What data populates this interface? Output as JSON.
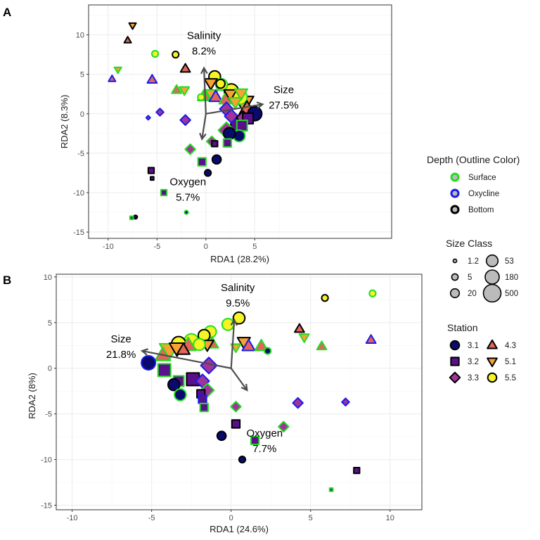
{
  "figure": {
    "panels": [
      {
        "tag": "A",
        "xlabel": "RDA1 (28.2%)",
        "ylabel": "RDA2 (8.3%)",
        "xlim": [
          -12,
          19
        ],
        "ylim": [
          -15.8,
          13.8
        ],
        "xticks": [
          -10,
          -5,
          0,
          5
        ],
        "yticks": [
          -15,
          -10,
          -5,
          0,
          5,
          10
        ],
        "xtick_labels": [
          "-10",
          "-5",
          "0",
          "5"
        ],
        "ytick_labels": [
          "-15",
          "-10",
          "-5",
          "0",
          "5",
          "10"
        ]
      },
      {
        "tag": "B",
        "xlabel": "RDA1 (24.6%)",
        "ylabel": "RDA2 (8%)",
        "xlim": [
          -11,
          12
        ],
        "ylim": [
          -15.5,
          10.3
        ],
        "xticks": [
          -10,
          -5,
          0,
          5,
          10
        ],
        "yticks": [
          -15,
          -10,
          -5,
          0,
          5,
          10
        ],
        "xtick_labels": [
          "-10",
          "-5",
          "0",
          "5",
          "10"
        ],
        "ytick_labels": [
          "-15",
          "-10",
          "-5",
          "0",
          "5",
          "10"
        ]
      }
    ]
  },
  "legend": {
    "depth": {
      "title": "Depth (Outline Color)",
      "items": [
        {
          "label": "Surface",
          "color": "#22dd22"
        },
        {
          "label": "Oxycline",
          "color": "#1a1aee"
        },
        {
          "label": "Bottom",
          "color": "#000000"
        }
      ]
    },
    "size": {
      "title": "Size Class",
      "items": [
        {
          "label": "1.2",
          "size": 1.2
        },
        {
          "label": "5",
          "size": 5
        },
        {
          "label": "20",
          "size": 20
        },
        {
          "label": "53",
          "size": 53
        },
        {
          "label": "180",
          "size": 180
        },
        {
          "label": "500",
          "size": 500
        }
      ]
    },
    "station": {
      "title": "Station",
      "items": [
        {
          "label": "3.1",
          "shape": "circle",
          "fill": "#0a0a6e"
        },
        {
          "label": "3.2",
          "shape": "square",
          "fill": "#5a108a"
        },
        {
          "label": "3.3",
          "shape": "diamond",
          "fill": "#a0349a"
        },
        {
          "label": "4.3",
          "shape": "triangle",
          "fill": "#e0655a"
        },
        {
          "label": "5.1",
          "shape": "triangle-down",
          "fill": "#f7a234"
        },
        {
          "label": "5.5",
          "shape": "circle",
          "fill": "#f5f525"
        }
      ]
    }
  },
  "chart_data": [
    {
      "type": "scatter",
      "panel": "A",
      "xlabel": "RDA1 (28.2%)",
      "ylabel": "RDA2 (8.3%)",
      "xlim": [
        -12,
        19
      ],
      "ylim": [
        -15.8,
        13.8
      ],
      "grid": true,
      "arrows": [
        {
          "name": "Salinity",
          "pct": "8.2%",
          "x": -0.2,
          "y": 5.8
        },
        {
          "name": "Size",
          "pct": "27.5%",
          "x": 5.8,
          "y": 1.2
        },
        {
          "name": "Oxygen",
          "pct": "5.7%",
          "x": -0.4,
          "y": -3.2
        }
      ],
      "points": [
        {
          "x": -7.5,
          "y": 11.2,
          "station": "5.1",
          "depth": "Bottom",
          "size": 5
        },
        {
          "x": -8.0,
          "y": 9.3,
          "station": "4.3",
          "depth": "Bottom",
          "size": 5
        },
        {
          "x": -5.2,
          "y": 7.6,
          "station": "5.5",
          "depth": "Surface",
          "size": 5
        },
        {
          "x": -3.1,
          "y": 7.5,
          "station": "5.5",
          "depth": "Bottom",
          "size": 5
        },
        {
          "x": -9.0,
          "y": 5.6,
          "station": "5.1",
          "depth": "Surface",
          "size": 5
        },
        {
          "x": -9.6,
          "y": 4.4,
          "station": "4.3",
          "depth": "Oxycline",
          "size": 5
        },
        {
          "x": -5.5,
          "y": 4.3,
          "station": "4.3",
          "depth": "Oxycline",
          "size": 20
        },
        {
          "x": -2.1,
          "y": 5.7,
          "station": "4.3",
          "depth": "Bottom",
          "size": 20
        },
        {
          "x": -3.0,
          "y": 3.0,
          "station": "4.3",
          "depth": "Surface",
          "size": 20
        },
        {
          "x": -2.2,
          "y": 3.0,
          "station": "5.1",
          "depth": "Surface",
          "size": 20
        },
        {
          "x": -4.7,
          "y": 0.2,
          "station": "3.3",
          "depth": "Oxycline",
          "size": 5
        },
        {
          "x": -5.9,
          "y": -0.5,
          "station": "3.3",
          "depth": "Oxycline",
          "size": 1.2
        },
        {
          "x": -2.1,
          "y": -0.8,
          "station": "3.3",
          "depth": "Oxycline",
          "size": 20
        },
        {
          "x": -1.6,
          "y": -4.5,
          "station": "3.3",
          "depth": "Surface",
          "size": 20
        },
        {
          "x": -0.4,
          "y": -6.1,
          "station": "3.2",
          "depth": "Surface",
          "size": 20
        },
        {
          "x": 0.2,
          "y": -7.5,
          "station": "3.1",
          "depth": "Bottom",
          "size": 5
        },
        {
          "x": 1.1,
          "y": -5.8,
          "station": "3.1",
          "depth": "Bottom",
          "size": 20
        },
        {
          "x": -5.6,
          "y": -7.2,
          "station": "3.2",
          "depth": "Bottom",
          "size": 5
        },
        {
          "x": -5.5,
          "y": -8.2,
          "station": "3.2",
          "depth": "Bottom",
          "size": 1.2
        },
        {
          "x": -4.3,
          "y": -10.0,
          "station": "3.2",
          "depth": "Surface",
          "size": 5
        },
        {
          "x": -2.0,
          "y": -12.5,
          "station": "3.1",
          "depth": "Surface",
          "size": 1.2
        },
        {
          "x": -7.2,
          "y": -13.1,
          "station": "3.1",
          "depth": "Bottom",
          "size": 1.2
        },
        {
          "x": -7.6,
          "y": -13.2,
          "station": "3.2",
          "depth": "Surface",
          "size": 1.2
        },
        {
          "x": 0.9,
          "y": 4.7,
          "station": "5.5",
          "depth": "Bottom",
          "size": 53
        },
        {
          "x": 0.5,
          "y": 3.9,
          "station": "5.1",
          "depth": "Bottom",
          "size": 53
        },
        {
          "x": 1.5,
          "y": 3.8,
          "station": "5.5",
          "depth": "Bottom",
          "size": 20
        },
        {
          "x": 1.6,
          "y": 3.7,
          "station": "5.5",
          "depth": "Surface",
          "size": 53
        },
        {
          "x": -0.5,
          "y": 2.1,
          "station": "5.5",
          "depth": "Surface",
          "size": 5
        },
        {
          "x": -0.2,
          "y": 2.2,
          "station": "4.3",
          "depth": "Surface",
          "size": 53
        },
        {
          "x": 0.6,
          "y": 2.5,
          "station": "5.1",
          "depth": "Surface",
          "size": 53
        },
        {
          "x": 1.0,
          "y": 2.1,
          "station": "4.3",
          "depth": "Oxycline",
          "size": 53
        },
        {
          "x": 2.6,
          "y": 2.9,
          "station": "5.5",
          "depth": "Bottom",
          "size": 180
        },
        {
          "x": 3.5,
          "y": 2.1,
          "station": "5.5",
          "depth": "Surface",
          "size": 180
        },
        {
          "x": 2.0,
          "y": 1.8,
          "station": "4.3",
          "depth": "Surface",
          "size": 53
        },
        {
          "x": 2.5,
          "y": 2.5,
          "station": "5.1",
          "depth": "Bottom",
          "size": 53
        },
        {
          "x": 3.6,
          "y": 2.6,
          "station": "5.1",
          "depth": "Surface",
          "size": 53
        },
        {
          "x": 3.9,
          "y": 1.4,
          "station": "5.1",
          "depth": "Bottom",
          "size": 500
        },
        {
          "x": 3.0,
          "y": 1.5,
          "station": "5.1",
          "depth": "Surface",
          "size": 53
        },
        {
          "x": 4.2,
          "y": 0.6,
          "station": "4.3",
          "depth": "Bottom",
          "size": 180
        },
        {
          "x": 5.0,
          "y": 0.0,
          "station": "3.1",
          "depth": "Bottom",
          "size": 180
        },
        {
          "x": 2.1,
          "y": 0.6,
          "station": "3.3",
          "depth": "Oxycline",
          "size": 53
        },
        {
          "x": 2.6,
          "y": -0.3,
          "station": "3.3",
          "depth": "Oxycline",
          "size": 53
        },
        {
          "x": 3.8,
          "y": -0.5,
          "station": "3.3",
          "depth": "Bottom",
          "size": 53
        },
        {
          "x": 4.3,
          "y": -0.6,
          "station": "3.2",
          "depth": "Bottom",
          "size": 53
        },
        {
          "x": 3.2,
          "y": -1.4,
          "station": "3.2",
          "depth": "Bottom",
          "size": 180
        },
        {
          "x": 3.7,
          "y": -1.5,
          "station": "3.2",
          "depth": "Surface",
          "size": 53
        },
        {
          "x": 3.4,
          "y": -2.8,
          "station": "3.1",
          "depth": "Surface",
          "size": 53
        },
        {
          "x": 2.4,
          "y": -2.5,
          "station": "3.1",
          "depth": "Bottom",
          "size": 53
        },
        {
          "x": 2.1,
          "y": -2.1,
          "station": "3.3",
          "depth": "Surface",
          "size": 180
        },
        {
          "x": 2.2,
          "y": -3.7,
          "station": "3.2",
          "depth": "Surface",
          "size": 20
        },
        {
          "x": 0.6,
          "y": -3.5,
          "station": "3.3",
          "depth": "Surface",
          "size": 20
        },
        {
          "x": 0.9,
          "y": -3.8,
          "station": "3.2",
          "depth": "Bottom",
          "size": 5
        }
      ]
    },
    {
      "type": "scatter",
      "panel": "B",
      "xlabel": "RDA1 (24.6%)",
      "ylabel": "RDA2 (8%)",
      "xlim": [
        -11,
        12
      ],
      "ylim": [
        -15.5,
        10.3
      ],
      "grid": true,
      "arrows": [
        {
          "name": "Salinity",
          "pct": "9.5%",
          "x": 0.2,
          "y": 5.3
        },
        {
          "name": "Size",
          "pct": "21.8%",
          "x": -5.6,
          "y": 1.9
        },
        {
          "name": "Oxygen",
          "pct": "7.7%",
          "x": 1.0,
          "y": -2.4
        }
      ],
      "points": [
        {
          "x": 8.9,
          "y": 8.2,
          "station": "5.5",
          "depth": "Surface",
          "size": 5
        },
        {
          "x": 5.9,
          "y": 7.7,
          "station": "5.5",
          "depth": "Bottom",
          "size": 5
        },
        {
          "x": 4.3,
          "y": 4.3,
          "station": "4.3",
          "depth": "Bottom",
          "size": 20
        },
        {
          "x": 4.6,
          "y": 3.4,
          "station": "5.1",
          "depth": "Surface",
          "size": 20
        },
        {
          "x": 5.7,
          "y": 2.4,
          "station": "4.3",
          "depth": "Surface",
          "size": 20
        },
        {
          "x": 8.8,
          "y": 3.1,
          "station": "4.3",
          "depth": "Oxycline",
          "size": 20
        },
        {
          "x": 7.2,
          "y": -3.7,
          "station": "3.3",
          "depth": "Oxycline",
          "size": 5
        },
        {
          "x": 4.2,
          "y": -3.8,
          "station": "3.3",
          "depth": "Oxycline",
          "size": 20
        },
        {
          "x": 3.3,
          "y": -6.4,
          "station": "3.3",
          "depth": "Surface",
          "size": 20
        },
        {
          "x": 0.3,
          "y": -4.2,
          "station": "3.3",
          "depth": "Surface",
          "size": 20
        },
        {
          "x": 0.3,
          "y": -6.1,
          "station": "3.2",
          "depth": "Bottom",
          "size": 20
        },
        {
          "x": -0.6,
          "y": -7.4,
          "station": "3.1",
          "depth": "Bottom",
          "size": 20
        },
        {
          "x": 1.5,
          "y": -7.9,
          "station": "3.2",
          "depth": "Surface",
          "size": 20
        },
        {
          "x": 0.7,
          "y": -10.0,
          "station": "3.1",
          "depth": "Bottom",
          "size": 5
        },
        {
          "x": 7.9,
          "y": -11.2,
          "station": "3.2",
          "depth": "Bottom",
          "size": 5
        },
        {
          "x": 6.3,
          "y": -13.3,
          "station": "3.2",
          "depth": "Surface",
          "size": 1.2
        },
        {
          "x": -0.2,
          "y": 4.8,
          "station": "5.5",
          "depth": "Surface",
          "size": 53
        },
        {
          "x": 0.5,
          "y": 5.5,
          "station": "5.5",
          "depth": "Bottom",
          "size": 53
        },
        {
          "x": 0.8,
          "y": 2.9,
          "station": "5.1",
          "depth": "Bottom",
          "size": 53
        },
        {
          "x": 0.3,
          "y": 2.3,
          "station": "5.1",
          "depth": "Surface",
          "size": 20
        },
        {
          "x": 1.1,
          "y": 2.4,
          "station": "4.3",
          "depth": "Oxycline",
          "size": 53
        },
        {
          "x": 1.9,
          "y": 2.4,
          "station": "4.3",
          "depth": "Surface",
          "size": 53
        },
        {
          "x": 2.3,
          "y": 1.9,
          "station": "3.1",
          "depth": "Surface",
          "size": 5
        },
        {
          "x": -1.3,
          "y": 4.0,
          "station": "5.5",
          "depth": "Surface",
          "size": 53
        },
        {
          "x": -1.7,
          "y": 3.6,
          "station": "5.5",
          "depth": "Bottom",
          "size": 53
        },
        {
          "x": -1.2,
          "y": 2.7,
          "station": "4.3",
          "depth": "Surface",
          "size": 53
        },
        {
          "x": -1.5,
          "y": 2.6,
          "station": "5.1",
          "depth": "Bottom",
          "size": 53
        },
        {
          "x": -2.0,
          "y": 2.6,
          "station": "5.5",
          "depth": "Surface",
          "size": 53
        },
        {
          "x": -2.5,
          "y": 3.0,
          "station": "5.5",
          "depth": "Surface",
          "size": 180
        },
        {
          "x": -3.3,
          "y": 2.7,
          "station": "5.5",
          "depth": "Bottom",
          "size": 180
        },
        {
          "x": -2.7,
          "y": 2.5,
          "station": "4.3",
          "depth": "Surface",
          "size": 180
        },
        {
          "x": -3.0,
          "y": 2.0,
          "station": "4.3",
          "depth": "Bottom",
          "size": 53
        },
        {
          "x": -3.4,
          "y": 2.2,
          "station": "5.1",
          "depth": "Bottom",
          "size": 180
        },
        {
          "x": -3.9,
          "y": 2.0,
          "station": "5.1",
          "depth": "Surface",
          "size": 500
        },
        {
          "x": -4.3,
          "y": 1.4,
          "station": "4.3",
          "depth": "Surface",
          "size": 180
        },
        {
          "x": -5.2,
          "y": 0.6,
          "station": "3.1",
          "depth": "Oxycline",
          "size": 180
        },
        {
          "x": -4.2,
          "y": -0.2,
          "station": "3.2",
          "depth": "Surface",
          "size": 180
        },
        {
          "x": -1.4,
          "y": 0.3,
          "station": "3.3",
          "depth": "Oxycline",
          "size": 180
        },
        {
          "x": -2.4,
          "y": -1.2,
          "station": "3.2",
          "depth": "Bottom",
          "size": 180
        },
        {
          "x": -3.3,
          "y": -1.4,
          "station": "3.2",
          "depth": "Surface",
          "size": 53
        },
        {
          "x": -3.6,
          "y": -1.8,
          "station": "3.1",
          "depth": "Bottom",
          "size": 53
        },
        {
          "x": -1.8,
          "y": -1.4,
          "station": "3.3",
          "depth": "Oxycline",
          "size": 53
        },
        {
          "x": -1.5,
          "y": -2.4,
          "station": "3.3",
          "depth": "Surface",
          "size": 53
        },
        {
          "x": -3.2,
          "y": -2.9,
          "station": "3.1",
          "depth": "Surface",
          "size": 53
        },
        {
          "x": -1.9,
          "y": -2.8,
          "station": "3.2",
          "depth": "Bottom",
          "size": 20
        },
        {
          "x": -1.8,
          "y": -3.4,
          "station": "3.2",
          "depth": "Oxycline",
          "size": 20
        },
        {
          "x": -1.7,
          "y": -4.3,
          "station": "3.2",
          "depth": "Surface",
          "size": 20
        }
      ]
    }
  ]
}
